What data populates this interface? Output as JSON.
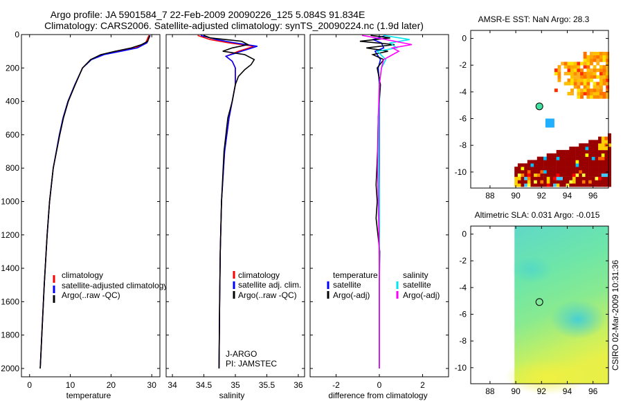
{
  "figure": {
    "title_line1": "Argo profile: JA 5901584_7 22-Feb-2009 20090226_125 5.084S 91.834E",
    "title_line2": "Climatology: CARS2006. Satellite-adjusted climatology: synTS_20090224.nc (1.9d later)",
    "side_caption": "CSIRO 02-Mar-2009 10:31:36"
  },
  "colors": {
    "climatology": "#ff0000",
    "satellite": "#0000ff",
    "argo": "#000000",
    "satellite_diff_salinity": "#00e5ee",
    "argo_diff_salinity": "#ff00ff",
    "sst_warm": "#ff8000",
    "sst_hot": "#990000",
    "sla_field": "#60e0a8"
  },
  "chart_data": [
    {
      "type": "line",
      "name": "temperature",
      "xlabel": "temperature",
      "ylabel": "",
      "xlim": [
        -2,
        32
      ],
      "ylim": [
        2050,
        0
      ],
      "xticks": [
        0,
        10,
        20,
        30
      ],
      "yticks": [
        0,
        200,
        400,
        600,
        800,
        1000,
        1200,
        1400,
        1600,
        1800,
        2000
      ],
      "legend": [
        "climatology",
        "satellite-adjusted climatology",
        "Argo(..raw -QC)"
      ],
      "legend_position": "lower-center",
      "series": [
        {
          "name": "climatology",
          "color": "#ff0000",
          "depth": [
            5,
            50,
            80,
            100,
            120,
            150,
            200,
            300,
            400,
            500,
            600,
            800,
            1000,
            1200,
            1500,
            1800,
            2000
          ],
          "values": [
            29.3,
            28.5,
            26,
            22,
            18,
            15,
            13,
            11.2,
            9.5,
            8.3,
            7.4,
            5.8,
            4.9,
            4.3,
            3.6,
            3.0,
            2.6
          ]
        },
        {
          "name": "satellite-adjusted climatology",
          "color": "#0000ff",
          "depth": [
            5,
            50,
            80,
            100,
            120,
            150,
            200,
            300,
            400,
            500,
            600,
            800,
            1000,
            1200,
            1500,
            1800,
            2000
          ],
          "values": [
            29.6,
            28.8,
            26.5,
            22.5,
            18.3,
            15.2,
            13,
            11.1,
            9.4,
            8.2,
            7.3,
            5.8,
            4.9,
            4.3,
            3.6,
            3.0,
            2.6
          ]
        },
        {
          "name": "Argo(..raw -QC)",
          "color": "#000000",
          "depth": [
            5,
            40,
            60,
            80,
            100,
            120,
            150,
            200,
            300,
            400,
            500,
            600,
            800,
            1000,
            1200,
            1500,
            1800,
            2000
          ],
          "values": [
            29.5,
            29.0,
            27.5,
            25,
            21,
            17.5,
            15,
            13,
            11.2,
            9.5,
            8.3,
            7.4,
            5.8,
            4.9,
            4.3,
            3.6,
            3.0,
            2.6
          ]
        }
      ]
    },
    {
      "type": "line",
      "name": "salinity",
      "xlabel": "salinity",
      "ylabel": "",
      "xlim": [
        33.9,
        36.1
      ],
      "ylim": [
        2050,
        0
      ],
      "xticks": [
        34,
        34.5,
        35,
        35.5,
        36
      ],
      "legend": [
        "climatology",
        "satellite adj. clim.",
        "Argo(..raw -QC)"
      ],
      "legend_position": "lower-center",
      "annotations": [
        "J-ARGO",
        "PI: JAMSTEC"
      ],
      "series": [
        {
          "name": "climatology",
          "color": "#ff0000",
          "depth": [
            5,
            30,
            50,
            70,
            100,
            130,
            160,
            200,
            300,
            500,
            700,
            1000,
            1300,
            1600,
            2000
          ],
          "values": [
            34.4,
            34.6,
            34.9,
            35.3,
            35.05,
            34.85,
            34.95,
            35.0,
            35.0,
            34.9,
            34.83,
            34.78,
            34.76,
            34.75,
            34.74
          ]
        },
        {
          "name": "satellite adj. clim.",
          "color": "#0000ff",
          "depth": [
            5,
            30,
            50,
            70,
            100,
            130,
            160,
            200,
            300,
            500,
            700,
            1000,
            1300,
            1600,
            2000
          ],
          "values": [
            34.45,
            34.7,
            35.0,
            35.35,
            35.1,
            34.85,
            34.95,
            35.0,
            35.0,
            34.9,
            34.83,
            34.78,
            34.76,
            34.75,
            34.74
          ]
        },
        {
          "name": "Argo(..raw -QC)",
          "color": "#000000",
          "depth": [
            5,
            20,
            40,
            60,
            80,
            100,
            120,
            150,
            180,
            210,
            250,
            300,
            400,
            500,
            700,
            1000,
            1300,
            1600,
            2000
          ],
          "values": [
            34.5,
            34.6,
            35.1,
            35.2,
            34.95,
            34.8,
            35.15,
            35.3,
            35.25,
            35.15,
            35.05,
            35.0,
            34.95,
            34.88,
            34.82,
            34.78,
            34.76,
            34.75,
            34.74
          ]
        }
      ]
    },
    {
      "type": "line",
      "name": "difference",
      "xlabel": "difference from climatology",
      "ylabel": "",
      "xlim": [
        -3.2,
        3.2
      ],
      "ylim": [
        2050,
        0
      ],
      "xticks": [
        -2,
        0,
        2
      ],
      "legend_left_title": "temperature",
      "legend_right_title": "salinity",
      "legend": [
        "satellite",
        "Argo(-adj)",
        "satellite",
        "Argo(-adj)"
      ],
      "legend_position": "lower-center",
      "series": [
        {
          "name": "temperature satellite",
          "color": "#0000ff",
          "depth": [
            5,
            30,
            50,
            80,
            100,
            150,
            200,
            300,
            500,
            800,
            1000,
            1400,
            2000
          ],
          "values": [
            0.3,
            -0.3,
            0.1,
            0.2,
            -0.2,
            0.05,
            -0.05,
            0.0,
            0.0,
            0.0,
            0.0,
            0.0,
            0.0
          ]
        },
        {
          "name": "temperature Argo(-adj)",
          "color": "#000000",
          "depth": [
            5,
            20,
            40,
            60,
            80,
            100,
            120,
            150,
            200,
            300,
            500,
            700,
            900,
            1000,
            1100,
            1300,
            1500,
            2000
          ],
          "values": [
            -0.4,
            0.5,
            -0.9,
            0.7,
            -0.6,
            0.4,
            -0.3,
            0.2,
            -0.1,
            0.05,
            -0.05,
            -0.08,
            -0.15,
            -0.1,
            -0.15,
            0.02,
            0.0,
            0.0
          ]
        },
        {
          "name": "salinity satellite",
          "color": "#00e5ee",
          "depth": [
            5,
            30,
            50,
            80,
            100,
            150,
            200,
            300,
            500,
            800,
            1000,
            1400,
            2000
          ],
          "values": [
            0.2,
            1.4,
            0.5,
            0.8,
            -0.1,
            0.3,
            0.1,
            0.0,
            -0.02,
            -0.02,
            0.0,
            0.0,
            0.0
          ]
        },
        {
          "name": "salinity Argo(-adj)",
          "color": "#ff00ff",
          "depth": [
            5,
            30,
            60,
            80,
            100,
            150,
            200,
            300,
            500,
            800,
            1000,
            1200,
            1400,
            2000
          ],
          "values": [
            -0.8,
            0.3,
            1.5,
            0.6,
            0.9,
            0.2,
            0.1,
            0.0,
            -0.05,
            -0.08,
            -0.05,
            -0.02,
            0.0,
            0.0
          ]
        }
      ]
    },
    {
      "type": "heatmap",
      "name": "sst-map",
      "title": "AMSR-E SST: NaN Argo: 28.3",
      "xlim": [
        86.5,
        97.2
      ],
      "ylim": [
        -11.2,
        0.6
      ],
      "xticks": [
        88,
        90,
        92,
        94,
        96
      ],
      "yticks": [
        0,
        -2,
        -4,
        -6,
        -8,
        -10
      ],
      "argo_position": {
        "lon": 91.834,
        "lat": -5.084
      }
    },
    {
      "type": "heatmap",
      "name": "sla-map",
      "title": "Altimetric SLA: 0.031 Argo: -0.015",
      "xlim": [
        86.5,
        97.2
      ],
      "ylim": [
        -11.2,
        0.6
      ],
      "xticks": [
        88,
        90,
        92,
        94,
        96
      ],
      "yticks": [
        0,
        -2,
        -4,
        -6,
        -8,
        -10
      ],
      "field_lon_start": 89.9,
      "argo_position": {
        "lon": 91.834,
        "lat": -5.084
      }
    }
  ]
}
